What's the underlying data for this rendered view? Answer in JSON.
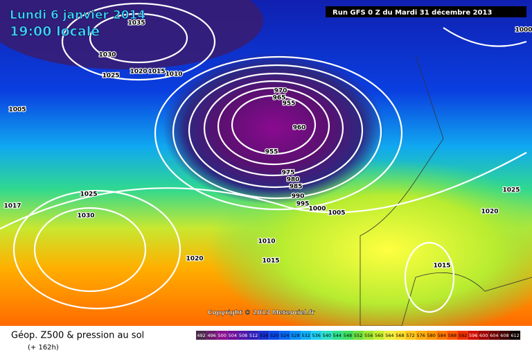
{
  "header": {
    "date": "Lundi 6 janvier 2014",
    "time": "19:00 locale",
    "run": "Run GFS 0 Z du Mardi 31 décembre 2013"
  },
  "map": {
    "isobar_labels": [
      1035,
      1030,
      1025,
      1020,
      1015,
      1010,
      1005,
      1000,
      970,
      965,
      955,
      960,
      955,
      975,
      980,
      985,
      990,
      995,
      1000,
      1005,
      1025,
      1030,
      1017,
      1010,
      1015,
      1020,
      1025,
      1020,
      1015
    ],
    "copyright": "Copyright © 2013 Meteociel.fr"
  },
  "legend": {
    "title": "Géop. Z500 & pression au sol",
    "lead_time": "(+ 162h)",
    "scale": [
      492,
      496,
      500,
      504,
      508,
      512,
      516,
      520,
      524,
      528,
      532,
      536,
      540,
      544,
      548,
      552,
      556,
      560,
      564,
      568,
      572,
      576,
      580,
      584,
      588,
      592,
      596,
      600,
      604,
      608,
      612
    ]
  }
}
